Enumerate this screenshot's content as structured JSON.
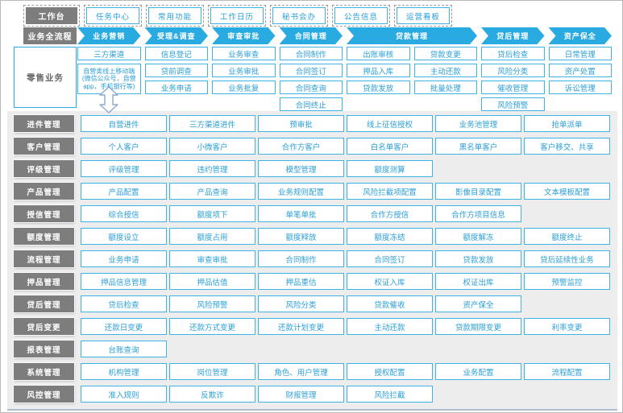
{
  "colors": {
    "accent_blue": "#29abe2",
    "button_border": "#3fb3e3",
    "button_text": "#2a9fd8",
    "header_gray": "#7d7d7d",
    "panel_background": "#ededed",
    "arrow_outline": "#8ba7d9"
  },
  "workbench": {
    "label": "工作台",
    "items": [
      "任务中心",
      "常用功能",
      "工作日历",
      "秘书会办",
      "公告信息",
      "运营看板"
    ]
  },
  "process": {
    "label": "业务全流程",
    "stages": [
      {
        "label": "业务营销",
        "span": 1
      },
      {
        "label": "受理&调查",
        "span": 1
      },
      {
        "label": "审查审批",
        "span": 1
      },
      {
        "label": "合同管理",
        "span": 1
      },
      {
        "label": "贷款管理",
        "span": 2
      },
      {
        "label": "贷后管理",
        "span": 1
      },
      {
        "label": "资产保全",
        "span": 1
      }
    ]
  },
  "retail": {
    "label": "零售业务",
    "columns": [
      {
        "items": [
          "三方渠道"
        ],
        "note": "自营类线上移动端(微信公众号，自营app，手机银行等)"
      },
      {
        "items": [
          "信息登记",
          "贷前调查",
          "业务申请"
        ]
      },
      {
        "items": [
          "业务审查",
          "业务审批",
          "业务批复"
        ]
      },
      {
        "items": [
          "合同制作",
          "合同签订",
          "合同查询",
          "合同终止"
        ]
      },
      {
        "items": [
          "出账审核",
          "押品入库",
          "贷款发放"
        ]
      },
      {
        "items": [
          "贷款变更",
          "主动还款",
          "批量处理"
        ]
      },
      {
        "items": [
          "贷后检查",
          "风险分类",
          "催收管理",
          "风险预警"
        ]
      },
      {
        "items": [
          "日常管理",
          "资产处置",
          "诉讼管理"
        ]
      }
    ]
  },
  "modules": [
    {
      "label": "进件管理",
      "items": [
        "自营进件",
        "三方渠道进件",
        "预审批",
        "线上征信授权",
        "业务池管理",
        "抢单派单"
      ]
    },
    {
      "label": "客户管理",
      "items": [
        "个人客户",
        "小微客户",
        "合作方客户",
        "白名单客户",
        "黑名单客户",
        "客户移交、共享"
      ]
    },
    {
      "label": "评级管理",
      "items": [
        "评级管理",
        "违约管理",
        "模型管理",
        "额度测算"
      ]
    },
    {
      "label": "产品管理",
      "items": [
        "产品配置",
        "产品查询",
        "业务规则配置",
        "风险拦截项配置",
        "影像目录配置",
        "文本模板配置"
      ]
    },
    {
      "label": "授信管理",
      "items": [
        "综合授信",
        "额度项下",
        "单笔单批",
        "合作方授信",
        "合作方项目信息"
      ]
    },
    {
      "label": "额度管理",
      "items": [
        "额度设立",
        "额度占用",
        "额度释放",
        "额度冻结",
        "额度解冻",
        "额度终止"
      ]
    },
    {
      "label": "流程管理",
      "items": [
        "业务申请",
        "审查审批",
        "合同制作",
        "合同签订",
        "贷款发放",
        "贷后延续性业务"
      ]
    },
    {
      "label": "押品管理",
      "items": [
        "押品信息管理",
        "押品估值",
        "押品重估",
        "权证入库",
        "权证出库",
        "预警监控"
      ]
    },
    {
      "label": "贷后管理",
      "items": [
        "贷后检查",
        "风险预警",
        "风险分类",
        "贷款催收",
        "资产保全"
      ]
    },
    {
      "label": "贷后变更",
      "items": [
        "还款日变更",
        "还款方式变更",
        "还款计划变更",
        "主动还款",
        "贷款期限变更",
        "利率变更"
      ]
    },
    {
      "label": "报表管理",
      "items": [
        "台账查询"
      ]
    },
    {
      "label": "系统管理",
      "items": [
        "机构管理",
        "岗位管理",
        "角色、用户管理",
        "授权配置",
        "业务配置",
        "流程配置"
      ]
    },
    {
      "label": "风控管理",
      "items": [
        "准入规则",
        "反欺诈",
        "财报管理",
        "风险拦截"
      ]
    }
  ]
}
